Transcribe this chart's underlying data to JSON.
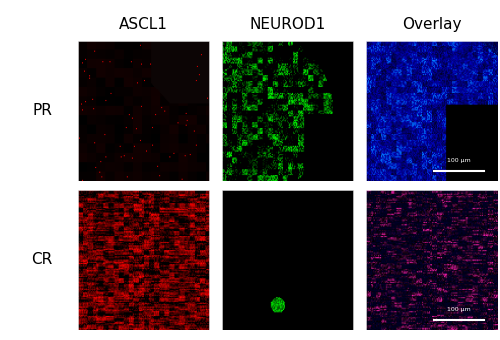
{
  "title_labels": [
    "ASCL1",
    "NEUROD1",
    "Overlay"
  ],
  "row_labels": [
    "PR",
    "CR"
  ],
  "background_color": "#ffffff",
  "scalebar_text": "100 μm",
  "fig_width": 5.0,
  "fig_height": 3.4,
  "title_fontsize": 11,
  "row_label_fontsize": 11
}
